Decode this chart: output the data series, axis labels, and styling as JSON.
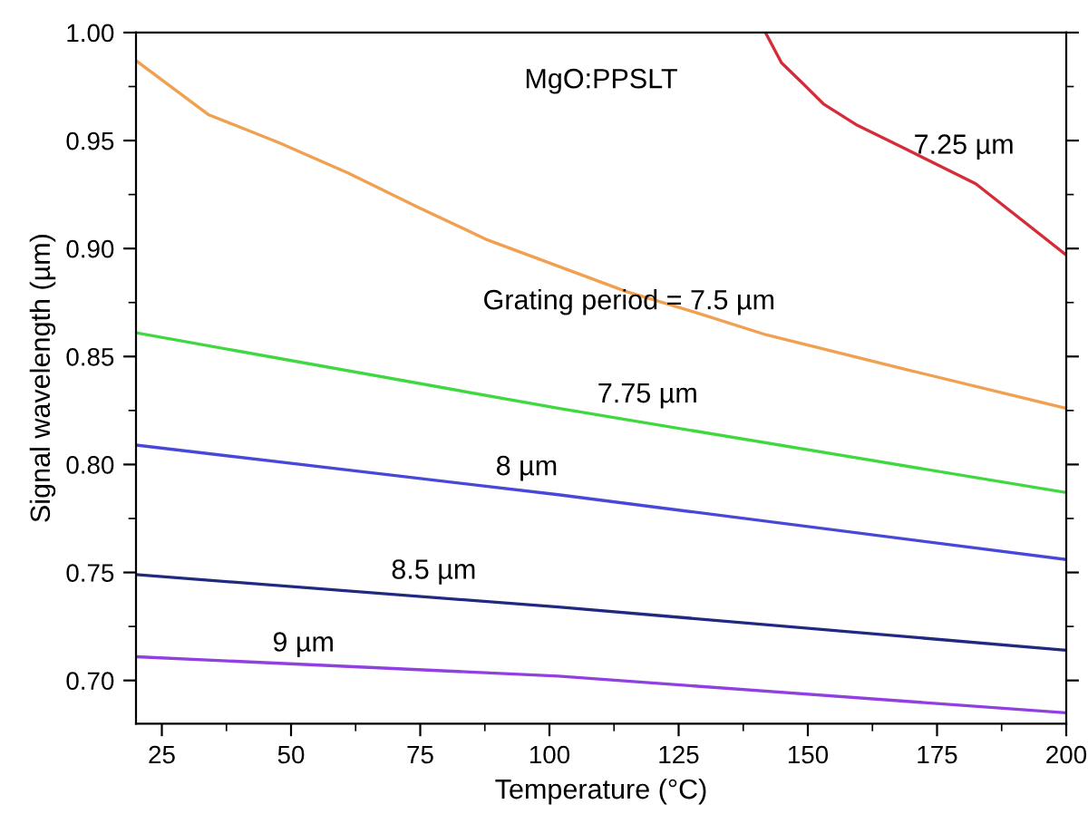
{
  "chart_data": {
    "type": "line",
    "xlabel": "Temperature (°C)",
    "ylabel": "Signal wavelength (µm)",
    "annotations": [
      "MgO:PPSLT"
    ],
    "xlim": [
      20,
      200
    ],
    "xticks": [
      25,
      50,
      75,
      100,
      125,
      150,
      175,
      200
    ],
    "ylim": [
      0.68,
      1.0
    ],
    "yticks": [
      {
        "value": 0.7,
        "label": "0.70"
      },
      0.75,
      {
        "value": 0.8,
        "label": "0.80"
      },
      0.85,
      {
        "value": 0.9,
        "label": "0.90"
      },
      0.95,
      {
        "value": 1.0,
        "label": "1.00"
      }
    ],
    "grid": false,
    "legend": false,
    "marker": "none",
    "line_style": "solid",
    "series": [
      {
        "name": "7.25 µm",
        "color": "#d62c3a",
        "x": [
          141.8,
          144.9,
          148.8,
          153,
          159.6,
          169,
          182.5,
          200
        ],
        "values": [
          1.0,
          0.986,
          0.977,
          0.967,
          0.957,
          0.946,
          0.93,
          0.897
        ]
      },
      {
        "name": "Grating period = 7.5 µm",
        "color": "#f0a050",
        "x": [
          20,
          34,
          47.7,
          61,
          74.7,
          88,
          115,
          128.8,
          142,
          155.6,
          169,
          200
        ],
        "values": [
          0.987,
          0.962,
          0.949,
          0.935,
          0.919,
          0.904,
          0.88,
          0.87,
          0.86,
          0.852,
          0.844,
          0.826
        ]
      },
      {
        "name": "7.75 µm",
        "color": "#40d840",
        "x": [
          20,
          101.7,
          200
        ],
        "values": [
          0.861,
          0.826,
          0.787
        ]
      },
      {
        "name": "8 µm",
        "color": "#4848d8",
        "x": [
          20,
          101.7,
          200
        ],
        "values": [
          0.809,
          0.786,
          0.756
        ]
      },
      {
        "name": "8.5 µm",
        "color": "#202880",
        "x": [
          20,
          101.7,
          200
        ],
        "values": [
          0.749,
          0.734,
          0.714
        ]
      },
      {
        "name": "9 µm",
        "color": "#9040e0",
        "x": [
          20,
          101.7,
          200
        ],
        "values": [
          0.711,
          0.702,
          0.685
        ]
      }
    ]
  }
}
